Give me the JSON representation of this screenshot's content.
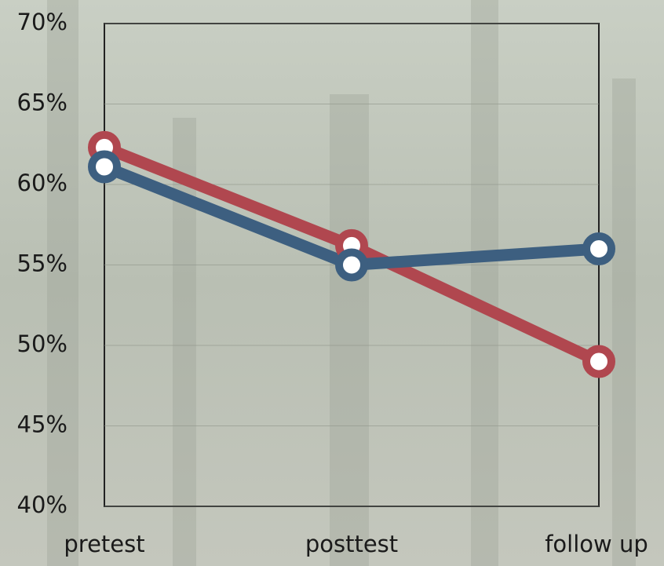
{
  "chart_data": {
    "type": "line",
    "categories": [
      "pretest",
      "posttest",
      "follow up"
    ],
    "series": [
      {
        "color": "#b0474f",
        "values": [
          62.3,
          56.2,
          49
        ]
      },
      {
        "color": "#3d5f80",
        "values": [
          61.1,
          55,
          56
        ]
      }
    ],
    "ylim": [
      40,
      70
    ],
    "yticks": [
      {
        "value": 40,
        "label": "40%"
      },
      {
        "value": 45,
        "label": "45%"
      },
      {
        "value": 50,
        "label": "50%"
      },
      {
        "value": 55,
        "label": "55%"
      },
      {
        "value": 60,
        "label": "60%"
      },
      {
        "value": 65,
        "label": "65%"
      },
      {
        "value": 70,
        "label": "70%"
      }
    ],
    "grid": true
  }
}
